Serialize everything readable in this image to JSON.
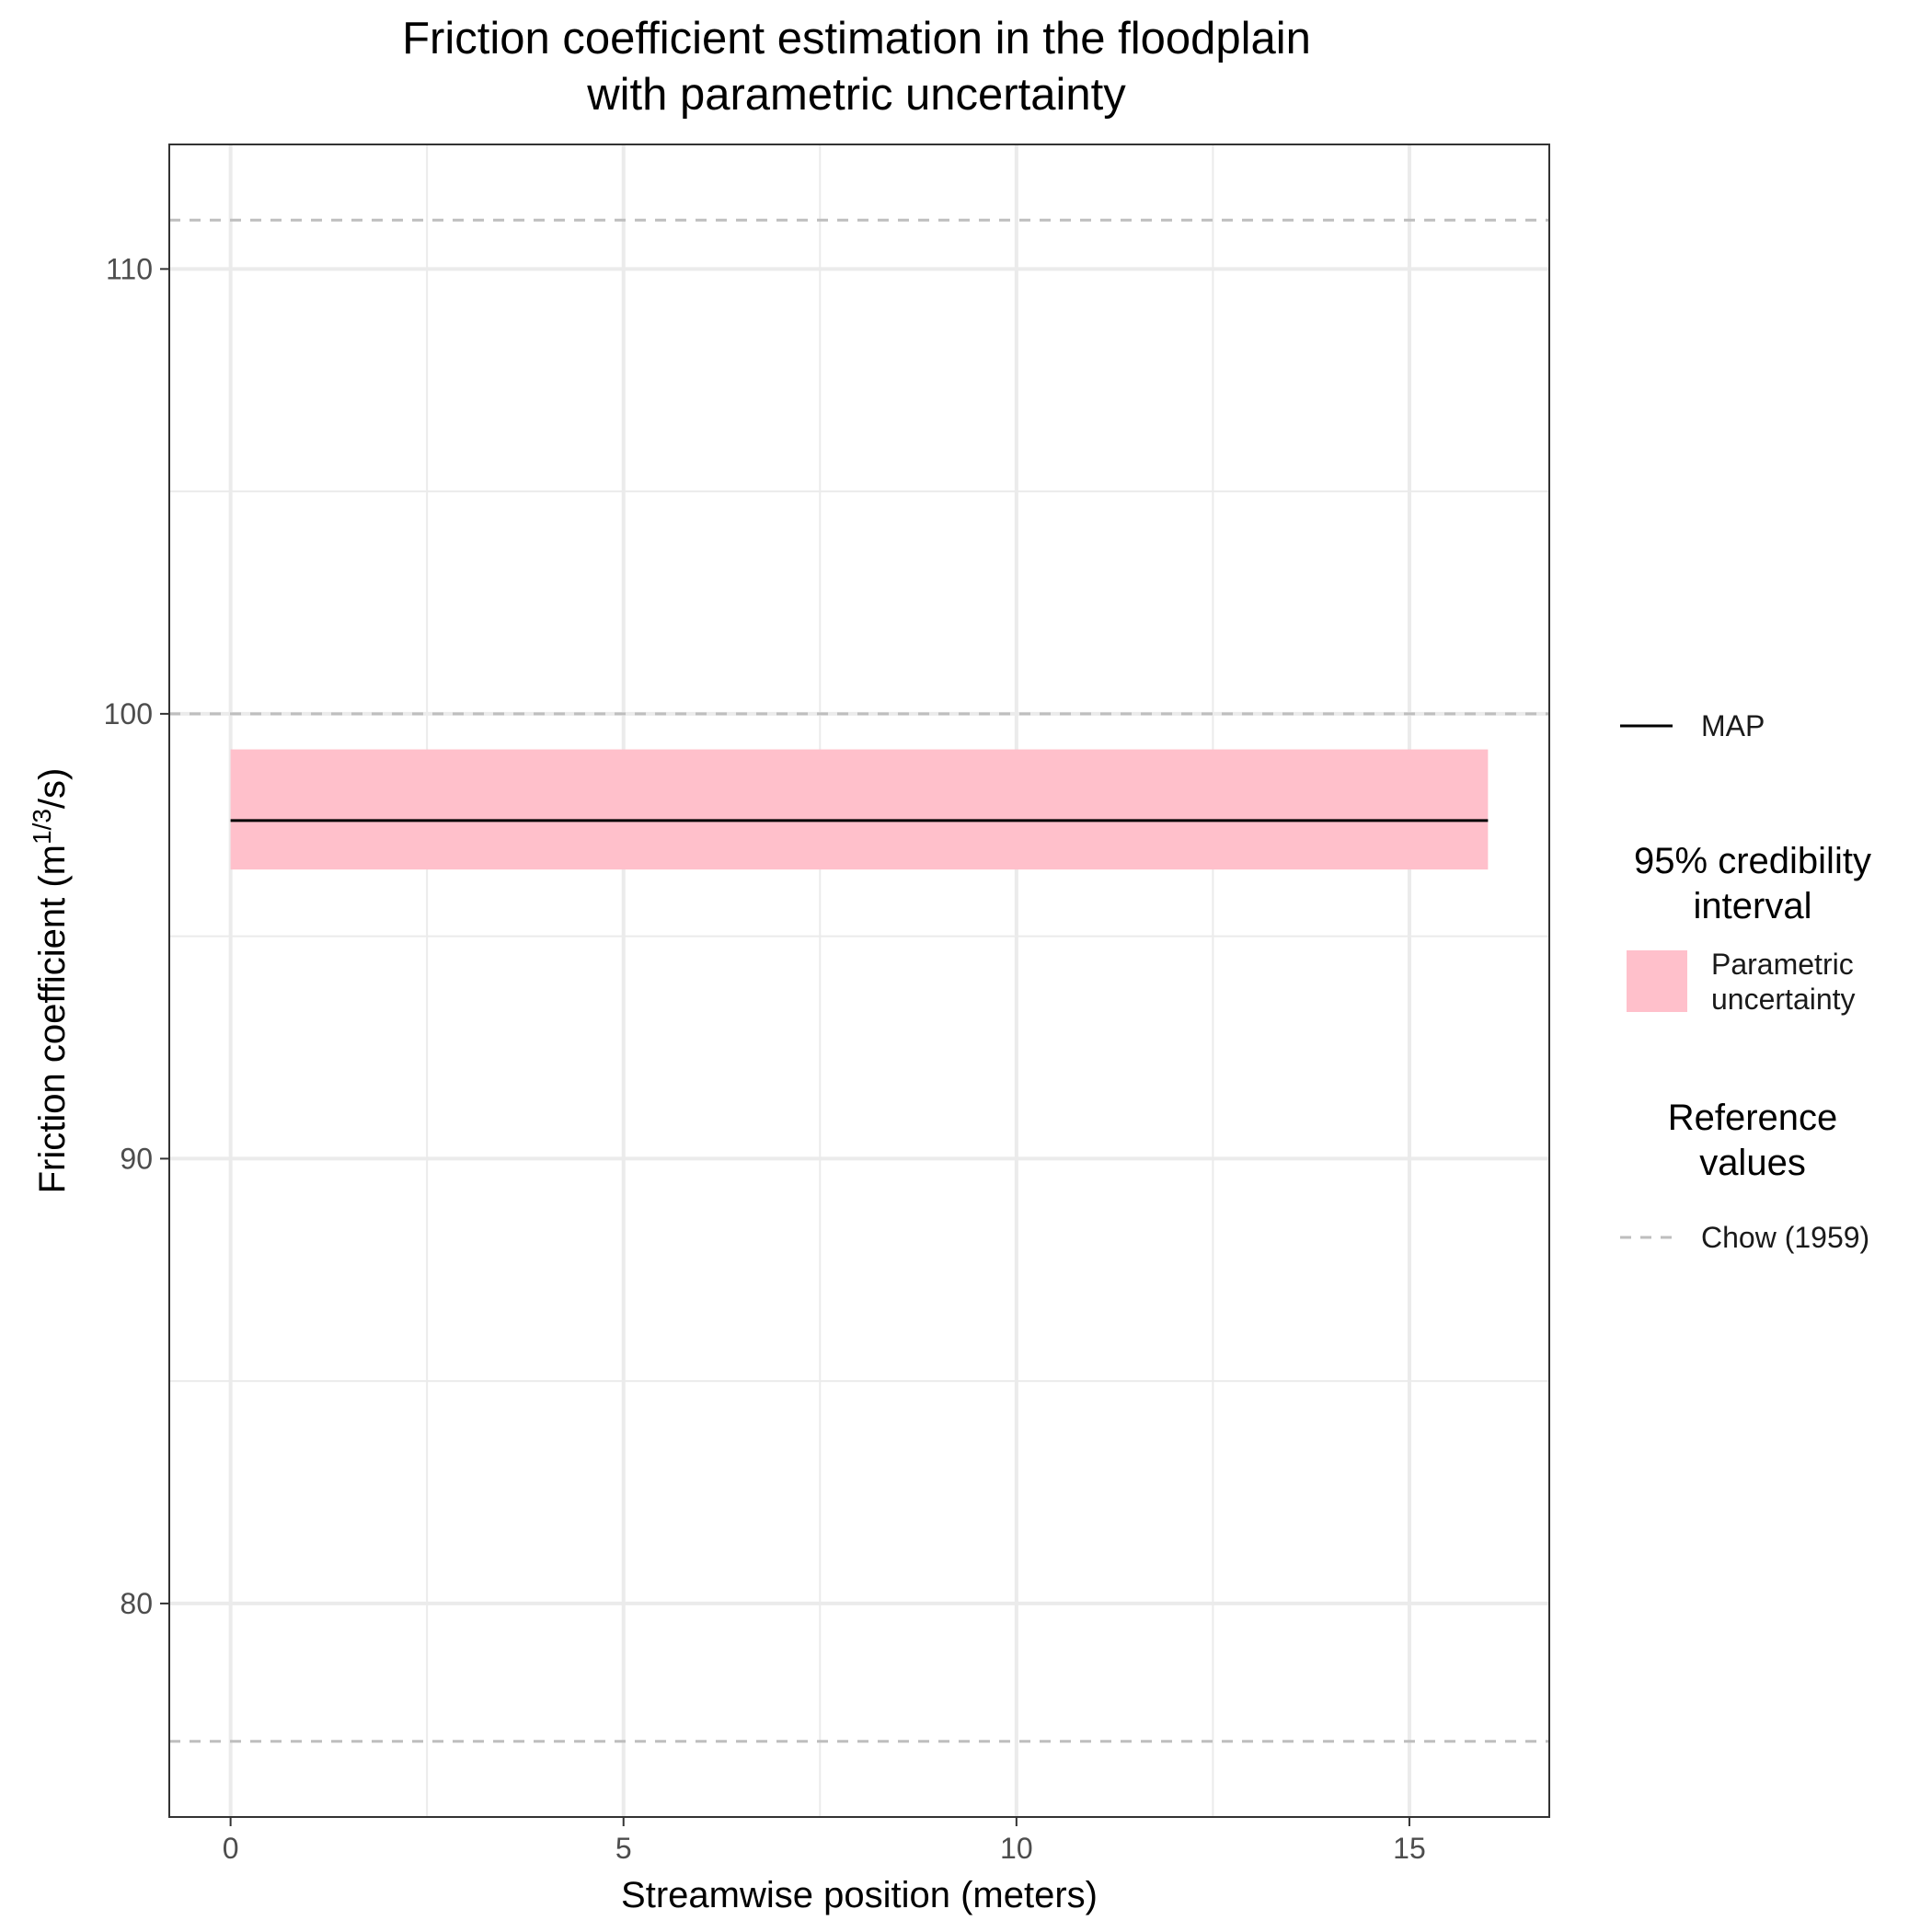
{
  "chart_data": {
    "type": "line",
    "title": [
      "Friction coefficient estimation in the floodplain",
      "with parametric uncertainty"
    ],
    "xlabel": "Streamwise position (meters)",
    "ylabel": "Friction coefficient (m",
    "ylabel_sup": "1/3",
    "ylabel_tail": "/s)",
    "xlim": [
      -0.78,
      16.78
    ],
    "ylim": [
      75.2,
      112.8
    ],
    "x_ticks": [
      0,
      5,
      10,
      15
    ],
    "y_ticks": [
      80,
      90,
      100,
      110
    ],
    "x_minor": [
      2.5,
      7.5,
      12.5
    ],
    "y_minor": [
      85,
      95,
      105
    ],
    "grid": true,
    "series": [
      {
        "name": "MAP",
        "x": [
          0,
          16
        ],
        "y": [
          97.6,
          97.6
        ],
        "color": "#000000"
      }
    ],
    "bands": [
      {
        "name": "Parametric uncertainty",
        "x": [
          0,
          16
        ],
        "lower": 96.5,
        "upper": 99.2,
        "color": "#FFC0CB"
      }
    ],
    "reference_lines": [
      {
        "name": "Chow (1959)",
        "y": 111.1,
        "color": "#BEBEBE"
      },
      {
        "name": "Chow (1959)",
        "y": 100.0,
        "color": "#BEBEBE"
      },
      {
        "name": "Chow (1959)",
        "y": 76.9,
        "color": "#BEBEBE"
      }
    ],
    "legend": {
      "placement": "right",
      "line_entry": "MAP",
      "band_title": [
        "95% credibility",
        "interval"
      ],
      "band_label": [
        "Parametric",
        "uncertainty"
      ],
      "ref_title": [
        "Reference",
        "values"
      ],
      "ref_label": "Chow (1959)"
    }
  }
}
